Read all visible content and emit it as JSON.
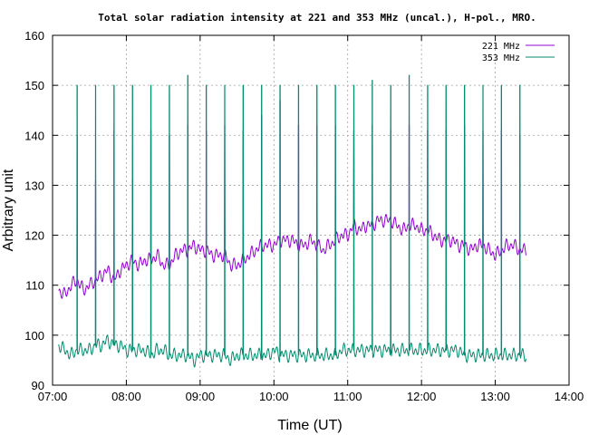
{
  "chart_data": {
    "type": "line",
    "title": "Total solar radiation intensity at 221 and 353 MHz (uncal.), H-pol., MRO.",
    "xlabel": "Time (UT)",
    "ylabel": "Arbitrary unit",
    "xlim": [
      "07:00",
      "14:00"
    ],
    "ylim": [
      90,
      160
    ],
    "x_ticks": [
      "07:00",
      "08:00",
      "09:00",
      "10:00",
      "11:00",
      "12:00",
      "13:00",
      "14:00"
    ],
    "y_ticks": [
      "90",
      "100",
      "110",
      "120",
      "130",
      "140",
      "150",
      "160"
    ],
    "grid": true,
    "legend_position": "top-right",
    "calibration_peak_times": [
      "07:20",
      "07:35",
      "07:50",
      "08:05",
      "08:20",
      "08:35",
      "08:50",
      "09:05",
      "09:20",
      "09:35",
      "09:50",
      "10:05",
      "10:20",
      "10:35",
      "10:50",
      "11:05",
      "11:20",
      "11:35",
      "11:50",
      "12:05",
      "12:20",
      "12:35",
      "12:50",
      "13:05",
      "13:20"
    ],
    "series": [
      {
        "name": "221 MHz",
        "color": "#9400d3",
        "x": [
          "07:05",
          "07:10",
          "07:15",
          "07:20",
          "07:25",
          "07:30",
          "07:35",
          "07:40",
          "07:45",
          "07:50",
          "07:55",
          "08:00",
          "08:05",
          "08:10",
          "08:15",
          "08:20",
          "08:25",
          "08:30",
          "08:35",
          "08:40",
          "08:45",
          "08:50",
          "08:55",
          "09:00",
          "09:05",
          "09:10",
          "09:15",
          "09:20",
          "09:25",
          "09:30",
          "09:35",
          "09:40",
          "09:45",
          "09:50",
          "09:55",
          "10:00",
          "10:05",
          "10:10",
          "10:15",
          "10:20",
          "10:25",
          "10:30",
          "10:35",
          "10:40",
          "10:45",
          "10:50",
          "10:55",
          "11:00",
          "11:05",
          "11:10",
          "11:15",
          "11:20",
          "11:25",
          "11:30",
          "11:35",
          "11:40",
          "11:45",
          "11:50",
          "11:55",
          "12:00",
          "12:05",
          "12:10",
          "12:15",
          "12:20",
          "12:25",
          "12:30",
          "12:35",
          "12:40",
          "12:45",
          "12:50",
          "12:55",
          "13:00",
          "13:05",
          "13:10",
          "13:15",
          "13:20",
          "13:25"
        ],
        "values": [
          109,
          108,
          110,
          111,
          109,
          110,
          111,
          112,
          113,
          111,
          113,
          114,
          115,
          114,
          115,
          115,
          116,
          114,
          114,
          116,
          117,
          117,
          118,
          117,
          117,
          116,
          116,
          116,
          114,
          114,
          115,
          116,
          117,
          118,
          118,
          118,
          119,
          119,
          119,
          118,
          118,
          119,
          118,
          117,
          118,
          119,
          120,
          120,
          122,
          121,
          122,
          122,
          123,
          123,
          123,
          122,
          121,
          122,
          122,
          121,
          121,
          120,
          119,
          119,
          119,
          118,
          118,
          117,
          118,
          118,
          117,
          116,
          117,
          118,
          118,
          117,
          117
        ],
        "peak_values": [
          140,
          131,
          141,
          131,
          141,
          140,
          142,
          141,
          142,
          141,
          144,
          147,
          142,
          142,
          142,
          141,
          142,
          141,
          142,
          141,
          141,
          142,
          141,
          141,
          140
        ]
      },
      {
        "name": "353 MHz",
        "color": "#008b6c",
        "x": [
          "07:05",
          "07:10",
          "07:15",
          "07:20",
          "07:25",
          "07:30",
          "07:35",
          "07:40",
          "07:45",
          "07:50",
          "07:55",
          "08:00",
          "08:05",
          "08:10",
          "08:15",
          "08:20",
          "08:25",
          "08:30",
          "08:35",
          "08:40",
          "08:45",
          "08:50",
          "08:55",
          "09:00",
          "09:05",
          "09:10",
          "09:15",
          "09:20",
          "09:25",
          "09:30",
          "09:35",
          "09:40",
          "09:45",
          "09:50",
          "09:55",
          "10:00",
          "10:05",
          "10:10",
          "10:15",
          "10:20",
          "10:25",
          "10:30",
          "10:35",
          "10:40",
          "10:45",
          "10:50",
          "10:55",
          "11:00",
          "11:05",
          "11:10",
          "11:15",
          "11:20",
          "11:25",
          "11:30",
          "11:35",
          "11:40",
          "11:45",
          "11:50",
          "11:55",
          "12:00",
          "12:05",
          "12:10",
          "12:15",
          "12:20",
          "12:25",
          "12:30",
          "12:35",
          "12:40",
          "12:45",
          "12:50",
          "12:55",
          "13:00",
          "13:05",
          "13:10",
          "13:15",
          "13:20",
          "13:25"
        ],
        "values": [
          98,
          97,
          96,
          97,
          97,
          97,
          98,
          98,
          99,
          98,
          98,
          97,
          97,
          97,
          97,
          96,
          97,
          97,
          96,
          96,
          96,
          96,
          95,
          96,
          96,
          96,
          96,
          96,
          95,
          96,
          96,
          96,
          96,
          96,
          96,
          97,
          96,
          96,
          96,
          96,
          96,
          96,
          96,
          96,
          96,
          96,
          97,
          97,
          97,
          97,
          97,
          97,
          97,
          97,
          97,
          97,
          97,
          97,
          97,
          97,
          97,
          97,
          97,
          97,
          97,
          97,
          96,
          96,
          96,
          96,
          96,
          96,
          96,
          96,
          96,
          96,
          96
        ],
        "peak_values": [
          150,
          150,
          150,
          150,
          150,
          150,
          152,
          150,
          150,
          150,
          150,
          150,
          150,
          150,
          150,
          150,
          151,
          150,
          152,
          150,
          150,
          150,
          150,
          150,
          150
        ]
      }
    ]
  }
}
